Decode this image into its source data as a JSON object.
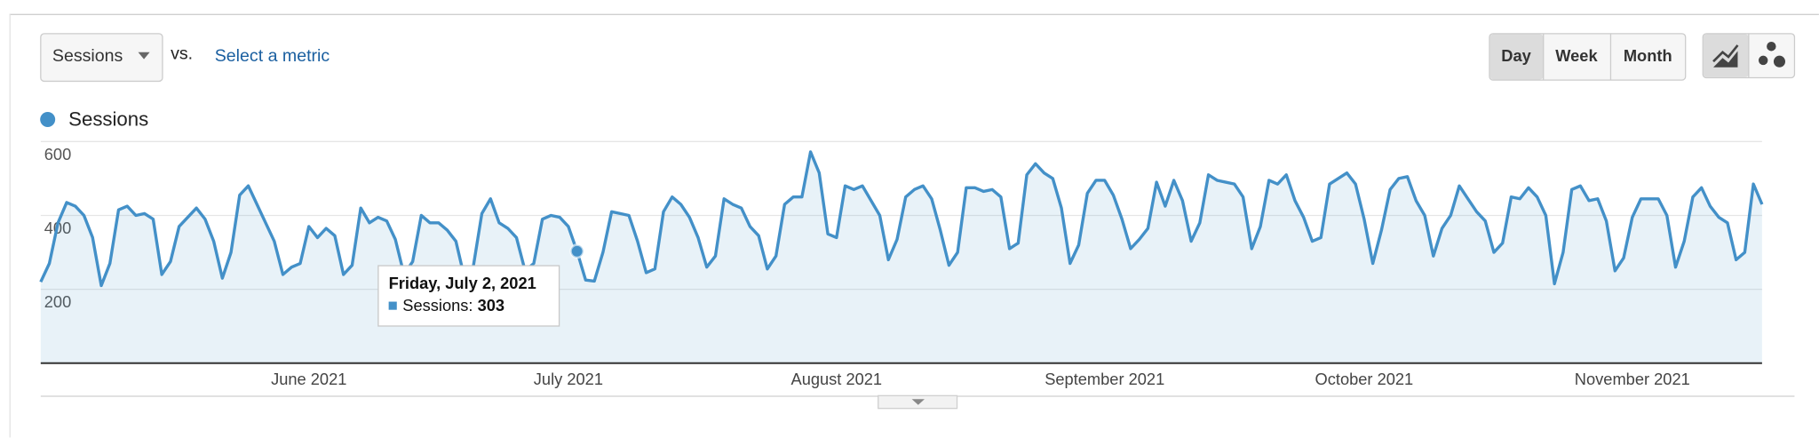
{
  "controls": {
    "metric": "Sessions",
    "vs": "vs.",
    "select": "Select a metric",
    "periods": [
      "Day",
      "Week",
      "Month"
    ]
  },
  "chart_data": {
    "type": "area",
    "series": [
      {
        "name": "Sessions",
        "color": "#4390c8",
        "values": [
          220,
          270,
          380,
          435,
          425,
          400,
          340,
          210,
          270,
          415,
          425,
          400,
          405,
          390,
          240,
          275,
          370,
          395,
          420,
          390,
          330,
          230,
          300,
          455,
          480,
          430,
          380,
          330,
          240,
          260,
          270,
          370,
          340,
          365,
          345,
          240,
          265,
          420,
          380,
          395,
          385,
          335,
          240,
          275,
          400,
          380,
          380,
          360,
          330,
          230,
          260,
          405,
          445,
          380,
          365,
          340,
          250,
          270,
          390,
          400,
          395,
          370,
          303,
          225,
          222,
          300,
          410,
          405,
          400,
          330,
          245,
          255,
          410,
          450,
          430,
          395,
          340,
          260,
          290,
          445,
          430,
          420,
          370,
          345,
          255,
          290,
          430,
          450,
          450,
          572,
          515,
          350,
          340,
          480,
          470,
          480,
          440,
          400,
          280,
          335,
          450,
          470,
          480,
          445,
          360,
          265,
          300,
          475,
          475,
          465,
          470,
          450,
          310,
          325,
          510,
          540,
          515,
          500,
          420,
          270,
          320,
          460,
          495,
          495,
          455,
          390,
          310,
          335,
          365,
          490,
          425,
          495,
          440,
          330,
          380,
          510,
          495,
          490,
          485,
          450,
          310,
          370,
          495,
          485,
          510,
          440,
          395,
          330,
          340,
          485,
          500,
          515,
          485,
          390,
          270,
          360,
          470,
          500,
          505,
          440,
          400,
          290,
          365,
          400,
          480,
          445,
          410,
          385,
          300,
          325,
          450,
          445,
          475,
          450,
          400,
          215,
          300,
          470,
          480,
          440,
          445,
          385,
          250,
          285,
          395,
          445,
          445,
          445,
          400,
          260,
          330,
          450,
          475,
          425,
          395,
          380,
          280,
          300,
          485,
          430
        ]
      }
    ],
    "xlim": [
      0,
      199
    ],
    "xticks": [
      {
        "value": 31,
        "label": "June 2021"
      },
      {
        "value": 61,
        "label": "July 2021"
      },
      {
        "value": 92,
        "label": "August 2021"
      },
      {
        "value": 123,
        "label": "September 2021"
      },
      {
        "value": 153,
        "label": "October 2021"
      },
      {
        "value": 184,
        "label": "November 2021"
      }
    ],
    "ylim": [
      0,
      600
    ],
    "yticks": [
      200,
      400,
      600
    ],
    "grid": true,
    "tooltip": {
      "title": "Friday, July 2, 2021",
      "label": "Sessions:"
    }
  }
}
